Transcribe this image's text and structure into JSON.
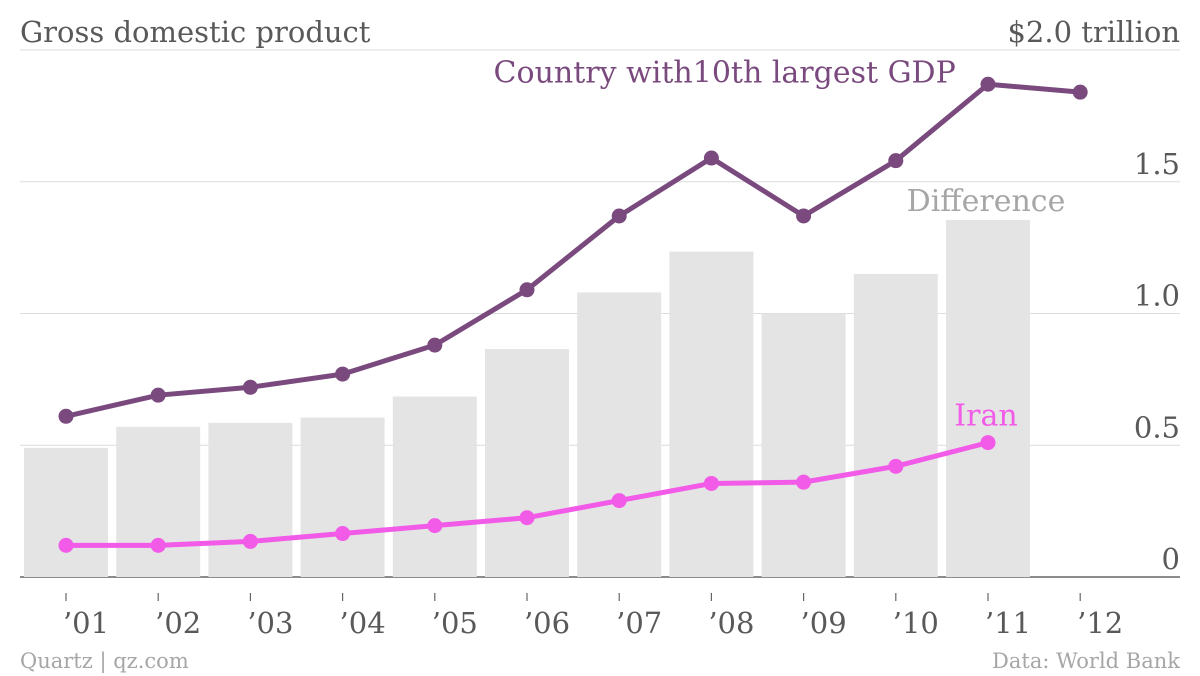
{
  "header": {
    "title": "Gross domestic product",
    "unit_label": "$2.0 trillion"
  },
  "footer": {
    "source_left": "Quartz | qz.com",
    "source_right": "Data: World Bank"
  },
  "colors": {
    "top_series": "#7a4a7e",
    "iran_series": "#f25ae8",
    "bars": "#e4e4e4",
    "difference_label": "#a6a6a6",
    "text": "#595959",
    "grid": "#dcdcdc",
    "axis": "#666666"
  },
  "chart_data": {
    "type": "line",
    "title": "Gross domestic product",
    "categories": [
      "’01",
      "’02",
      "’03",
      "’04",
      "’05",
      "’06",
      "’07",
      "’08",
      "’09",
      "’10",
      "’11",
      "’12"
    ],
    "y_ticks": [
      {
        "value": 0,
        "label": "0"
      },
      {
        "value": 0.5,
        "label": "0.5"
      },
      {
        "value": 1.0,
        "label": "1.0"
      },
      {
        "value": 1.5,
        "label": "1.5"
      },
      {
        "value": 2.0,
        "label": "$2.0 trillion"
      }
    ],
    "ylim": [
      0,
      2.0
    ],
    "grid": true,
    "series": [
      {
        "name": "Country with10th largest GDP",
        "kind": "line",
        "values": [
          0.61,
          0.69,
          0.72,
          0.77,
          0.88,
          1.09,
          1.37,
          1.59,
          1.37,
          1.58,
          1.87,
          1.84
        ]
      },
      {
        "name": "Iran",
        "kind": "line",
        "values": [
          0.12,
          0.12,
          0.135,
          0.165,
          0.195,
          0.225,
          0.29,
          0.355,
          0.36,
          0.42,
          0.51,
          null
        ]
      },
      {
        "name": "Difference",
        "kind": "bar",
        "values": [
          0.49,
          0.57,
          0.585,
          0.605,
          0.685,
          0.865,
          1.08,
          1.235,
          1.0,
          1.15,
          1.355,
          null
        ]
      }
    ]
  }
}
